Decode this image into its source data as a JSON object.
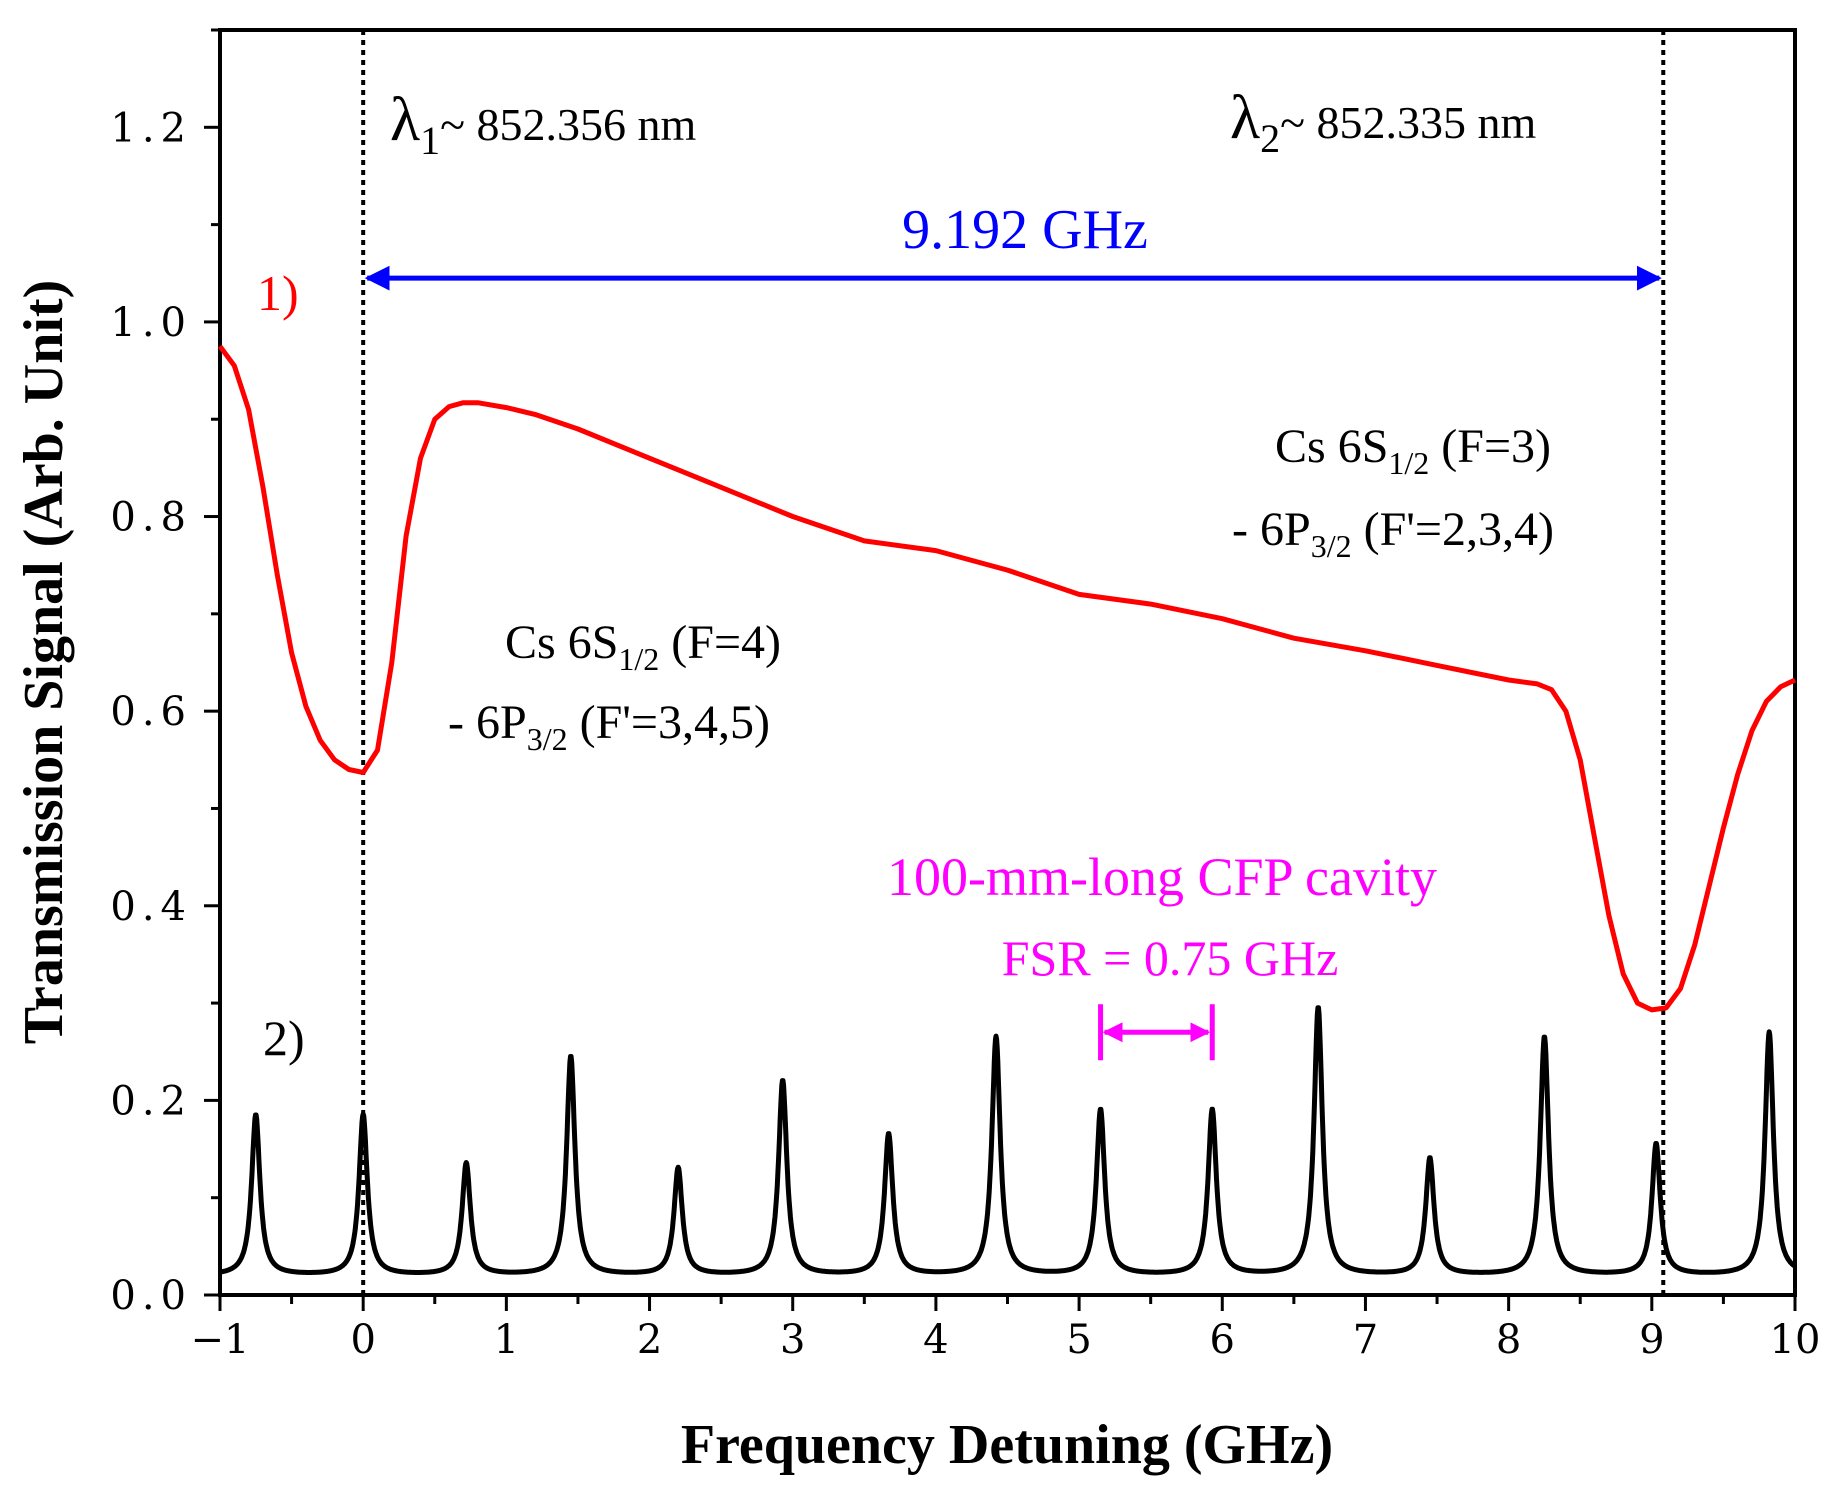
{
  "chart_data": {
    "type": "line",
    "xlabel": "Frequency Detuning (GHz)",
    "ylabel": "Transmission Signal (Arb. Unit)",
    "xlim": [
      -1,
      10
    ],
    "ylim": [
      0,
      1.3
    ],
    "x_ticks": [
      -1,
      0,
      1,
      2,
      3,
      4,
      5,
      6,
      7,
      8,
      9,
      10
    ],
    "x_tick_labels": [
      "−1",
      "0",
      "1",
      "2",
      "3",
      "4",
      "5",
      "6",
      "7",
      "8",
      "9",
      "10"
    ],
    "y_ticks": [
      0.0,
      0.2,
      0.4,
      0.6,
      0.8,
      1.0,
      1.2
    ],
    "y_tick_labels": [
      "0.0",
      "0.2",
      "0.4",
      "0.6",
      "0.8",
      "1.0",
      "1.2"
    ],
    "series": [
      {
        "name": "1)",
        "color": "#ff0000",
        "points": [
          [
            -1.0,
            0.975
          ],
          [
            -0.9,
            0.955
          ],
          [
            -0.8,
            0.91
          ],
          [
            -0.7,
            0.83
          ],
          [
            -0.6,
            0.74
          ],
          [
            -0.5,
            0.66
          ],
          [
            -0.4,
            0.605
          ],
          [
            -0.3,
            0.57
          ],
          [
            -0.2,
            0.55
          ],
          [
            -0.1,
            0.54
          ],
          [
            0.0,
            0.537
          ],
          [
            0.1,
            0.56
          ],
          [
            0.2,
            0.65
          ],
          [
            0.3,
            0.78
          ],
          [
            0.4,
            0.86
          ],
          [
            0.5,
            0.9
          ],
          [
            0.6,
            0.913
          ],
          [
            0.7,
            0.917
          ],
          [
            0.8,
            0.917
          ],
          [
            1.0,
            0.912
          ],
          [
            1.2,
            0.905
          ],
          [
            1.5,
            0.89
          ],
          [
            2.0,
            0.86
          ],
          [
            2.5,
            0.83
          ],
          [
            3.0,
            0.8
          ],
          [
            3.5,
            0.775
          ],
          [
            4.0,
            0.765
          ],
          [
            4.5,
            0.745
          ],
          [
            5.0,
            0.72
          ],
          [
            5.5,
            0.71
          ],
          [
            6.0,
            0.695
          ],
          [
            6.5,
            0.675
          ],
          [
            7.0,
            0.662
          ],
          [
            7.5,
            0.647
          ],
          [
            8.0,
            0.632
          ],
          [
            8.2,
            0.628
          ],
          [
            8.3,
            0.622
          ],
          [
            8.4,
            0.6
          ],
          [
            8.5,
            0.55
          ],
          [
            8.6,
            0.47
          ],
          [
            8.7,
            0.39
          ],
          [
            8.8,
            0.33
          ],
          [
            8.9,
            0.3
          ],
          [
            9.0,
            0.293
          ],
          [
            9.1,
            0.295
          ],
          [
            9.2,
            0.315
          ],
          [
            9.3,
            0.36
          ],
          [
            9.4,
            0.42
          ],
          [
            9.5,
            0.48
          ],
          [
            9.6,
            0.535
          ],
          [
            9.7,
            0.58
          ],
          [
            9.8,
            0.61
          ],
          [
            9.9,
            0.625
          ],
          [
            10.0,
            0.632
          ]
        ]
      },
      {
        "name": "2)",
        "color": "#000000",
        "baseline": 0.02,
        "peak_width": 0.035,
        "peaks": [
          [
            -0.75,
            0.185
          ],
          [
            0.0,
            0.185
          ],
          [
            0.72,
            0.135
          ],
          [
            1.45,
            0.245
          ],
          [
            2.2,
            0.13
          ],
          [
            2.93,
            0.22
          ],
          [
            3.67,
            0.165
          ],
          [
            4.42,
            0.265
          ],
          [
            5.15,
            0.19
          ],
          [
            5.93,
            0.19
          ],
          [
            6.67,
            0.295
          ],
          [
            7.45,
            0.14
          ],
          [
            8.25,
            0.265
          ],
          [
            9.03,
            0.155
          ],
          [
            9.82,
            0.27
          ]
        ]
      }
    ],
    "annotations": {
      "curve1_label": "1)",
      "curve2_label": "2)",
      "lambda1_symbol": "λ",
      "lambda1_sub": "1",
      "lambda1_value": "~ 852.356 nm",
      "lambda2_symbol": "λ",
      "lambda2_sub": "2",
      "lambda2_value": "~ 852.335 nm",
      "separation_label": "9.192 GHz",
      "separation_color": "#0000ff",
      "left_transition_line1_a": "Cs 6S",
      "left_transition_line1_sub": "1/2",
      "left_transition_line1_b": " (F=4)",
      "left_transition_line2_a": "- 6P",
      "left_transition_line2_sub": "3/2",
      "left_transition_line2_b": " (F'=3,4,5)",
      "right_transition_line1_a": "Cs 6S",
      "right_transition_line1_sub": "1/2",
      "right_transition_line1_b": " (F=3)",
      "right_transition_line2_a": "- 6P",
      "right_transition_line2_sub": "3/2",
      "right_transition_line2_b": " (F'=2,3,4)",
      "cavity_label": "100-mm-long CFP cavity",
      "fsr_label": "FSR = 0.75 GHz",
      "cavity_color": "#ff00ff",
      "marker_lines_x": [
        0.0,
        9.08
      ],
      "separation_arrow_x": [
        0.0,
        9.08
      ],
      "separation_arrow_y": 1.045,
      "fsr_bracket_x": [
        5.15,
        5.93
      ],
      "fsr_bracket_y": 0.27
    }
  }
}
